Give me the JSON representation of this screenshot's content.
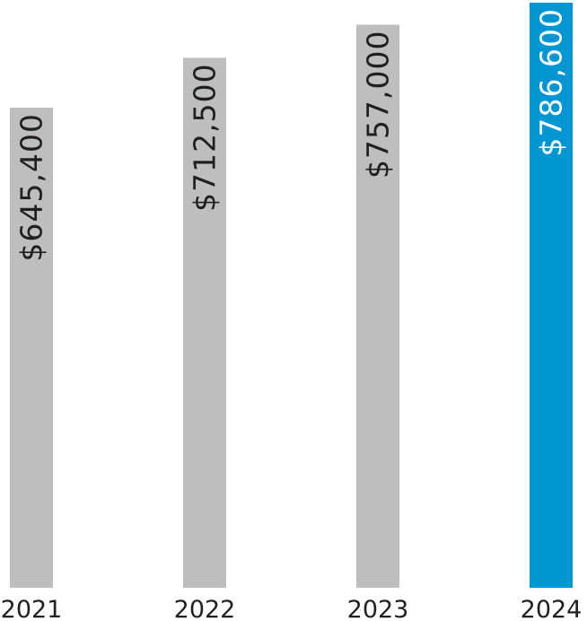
{
  "chart_data": {
    "type": "bar",
    "categories": [
      "2021",
      "2022",
      "2023",
      "2024"
    ],
    "values": [
      645400,
      712500,
      757000,
      786600
    ],
    "value_labels": [
      "$645,400",
      "$712,500",
      "$757,000",
      "$786,600"
    ],
    "colors": [
      "#bcbec0",
      "#bcbec0",
      "#bcbec0",
      "#0095d3"
    ]
  }
}
